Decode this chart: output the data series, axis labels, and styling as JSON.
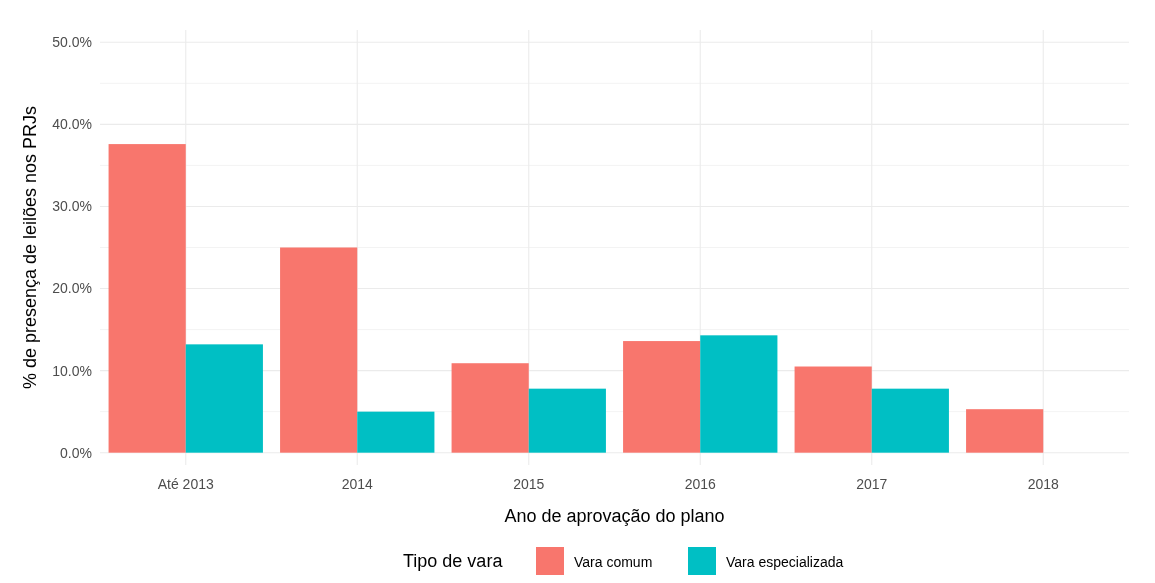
{
  "chart_data": {
    "type": "bar",
    "xlabel": "Ano de aprovação do plano",
    "ylabel": "% de presença de leilões nos PRJs",
    "legend_title": "Tipo de vara",
    "categories": [
      "Até 2013",
      "2014",
      "2015",
      "2016",
      "2017",
      "2018"
    ],
    "series": [
      {
        "name": "Vara comum",
        "color": "#f8766d",
        "values": [
          37.6,
          25.0,
          10.9,
          13.6,
          10.5,
          5.3
        ]
      },
      {
        "name": "Vara especializada",
        "color": "#00bfc4",
        "values": [
          13.2,
          5.0,
          7.8,
          14.3,
          7.8,
          null
        ]
      }
    ],
    "ylim": [
      -1.5,
      51.5
    ],
    "yticks": [
      {
        "value": 0,
        "label": "0.0%"
      },
      {
        "value": 10,
        "label": "10.0%"
      },
      {
        "value": 20,
        "label": "20.0%"
      },
      {
        "value": 30,
        "label": "30.0%"
      },
      {
        "value": 40,
        "label": "40.0%"
      },
      {
        "value": 50,
        "label": "50.0%"
      }
    ],
    "grid": true,
    "legend": "bottom"
  }
}
